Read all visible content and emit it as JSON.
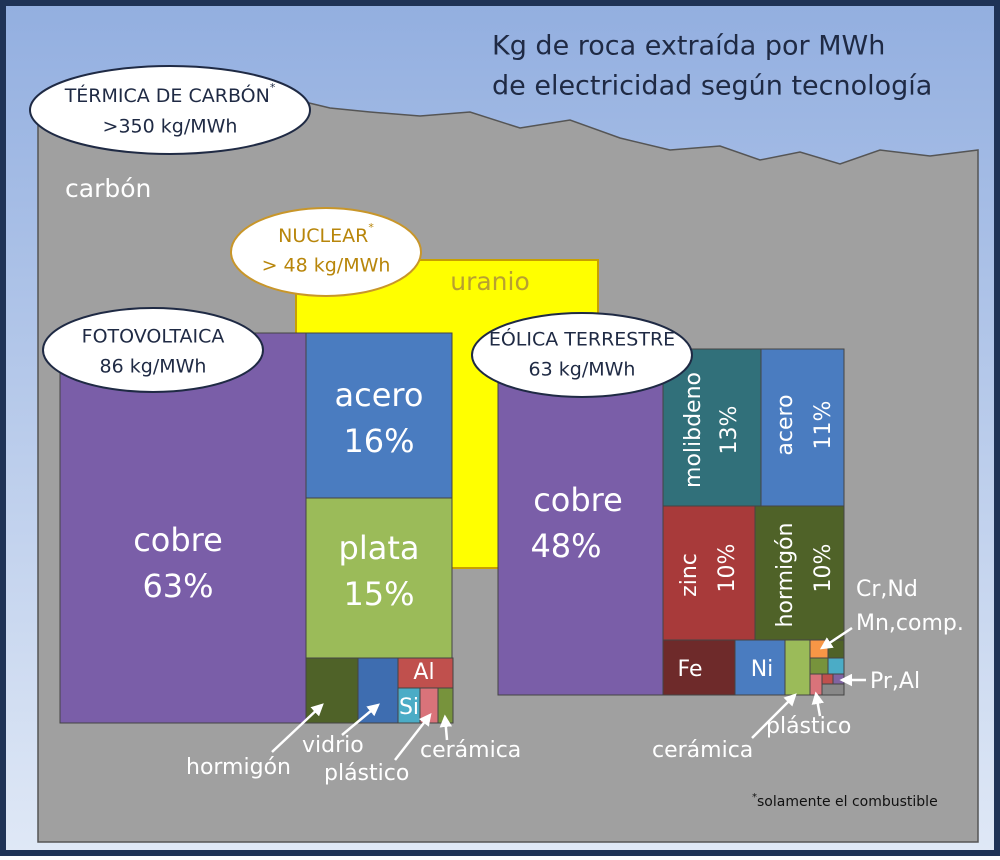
{
  "title": [
    "Kg de roca extraída por MWh",
    "de electricidad según tecnología"
  ],
  "coal": {
    "name": "TÉRMICA DE CARBÓN",
    "asterisk": "*",
    "amount": ">350 kg/MWh",
    "material": "carbón"
  },
  "nuclear": {
    "name": "NUCLEAR",
    "asterisk": "*",
    "amount": "> 48 kg/MWh",
    "material": "uranio"
  },
  "solar": {
    "name": "FOTOVOLTAICA",
    "amount": "86 kg/MWh",
    "blocks": [
      {
        "label": "cobre",
        "share": "63%"
      },
      {
        "label": "acero",
        "share": "16%"
      },
      {
        "label": "plata",
        "share": "15%"
      },
      {
        "label": "Al"
      },
      {
        "label": "Si"
      }
    ],
    "callouts": [
      "hormigón",
      "vidrio",
      "plástico",
      "cerámica"
    ]
  },
  "wind": {
    "name": "EÓLICA TERRESTRE",
    "amount": "63 kg/MWh",
    "blocks": [
      {
        "label": "cobre",
        "share": "48%"
      },
      {
        "label": "molibdeno",
        "share": "13%"
      },
      {
        "label": "acero",
        "share": "11%"
      },
      {
        "label": "zinc",
        "share": "10%"
      },
      {
        "label": "hormigón",
        "share": "10%"
      },
      {
        "label": "Fe"
      },
      {
        "label": "Ni"
      }
    ],
    "callouts": [
      "Cr,Nd",
      "Mn,comp.",
      "Pr,Al",
      "plástico",
      "cerámica"
    ]
  },
  "footnote": {
    "asterisk": "*",
    "text": "solamente el combustible"
  }
}
